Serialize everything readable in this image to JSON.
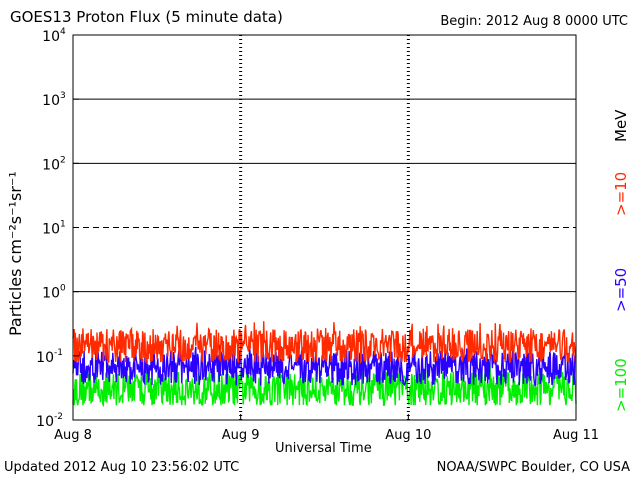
{
  "header": {
    "title": "GOES13 Proton Flux (5 minute data)",
    "begin": "Begin: 2012 Aug 8 0000 UTC"
  },
  "footer": {
    "updated": "Updated 2012 Aug 10 23:56:02 UTC",
    "credit": "NOAA/SWPC Boulder, CO USA"
  },
  "chart_data": {
    "type": "line",
    "title": "GOES13 Proton Flux (5 minute data)",
    "xlabel": "Universal Time",
    "ylabel": "Particles cm⁻²s⁻¹sr⁻¹",
    "yscale": "log",
    "ylim": [
      0.01,
      10000
    ],
    "xlim": [
      "2012-08-08",
      "2012-08-11"
    ],
    "x_ticks": [
      "Aug 8",
      "Aug 9",
      "Aug 10",
      "Aug 11"
    ],
    "y_ticks": [
      {
        "base": "10",
        "exp": "4"
      },
      {
        "base": "10",
        "exp": "3"
      },
      {
        "base": "10",
        "exp": "2"
      },
      {
        "base": "10",
        "exp": "1"
      },
      {
        "base": "10",
        "exp": "0"
      },
      {
        "base": "10",
        "exp": "-1"
      },
      {
        "base": "10",
        "exp": "-2"
      }
    ],
    "threshold_lines": [
      {
        "value": 1000,
        "style": "solid"
      },
      {
        "value": 100,
        "style": "solid"
      },
      {
        "value": 10,
        "style": "dashed"
      },
      {
        "value": 1,
        "style": "solid"
      }
    ],
    "unit_label": "MeV",
    "series": [
      {
        "name": ">=10",
        "color": "#ff2a00",
        "typical": 0.14,
        "range": [
          0.08,
          0.35
        ]
      },
      {
        "name": ">=50",
        "color": "#2a00ff",
        "typical": 0.065,
        "range": [
          0.03,
          0.15
        ]
      },
      {
        "name": ">=100",
        "color": "#00ee00",
        "typical": 0.03,
        "range": [
          0.017,
          0.08
        ]
      }
    ]
  }
}
